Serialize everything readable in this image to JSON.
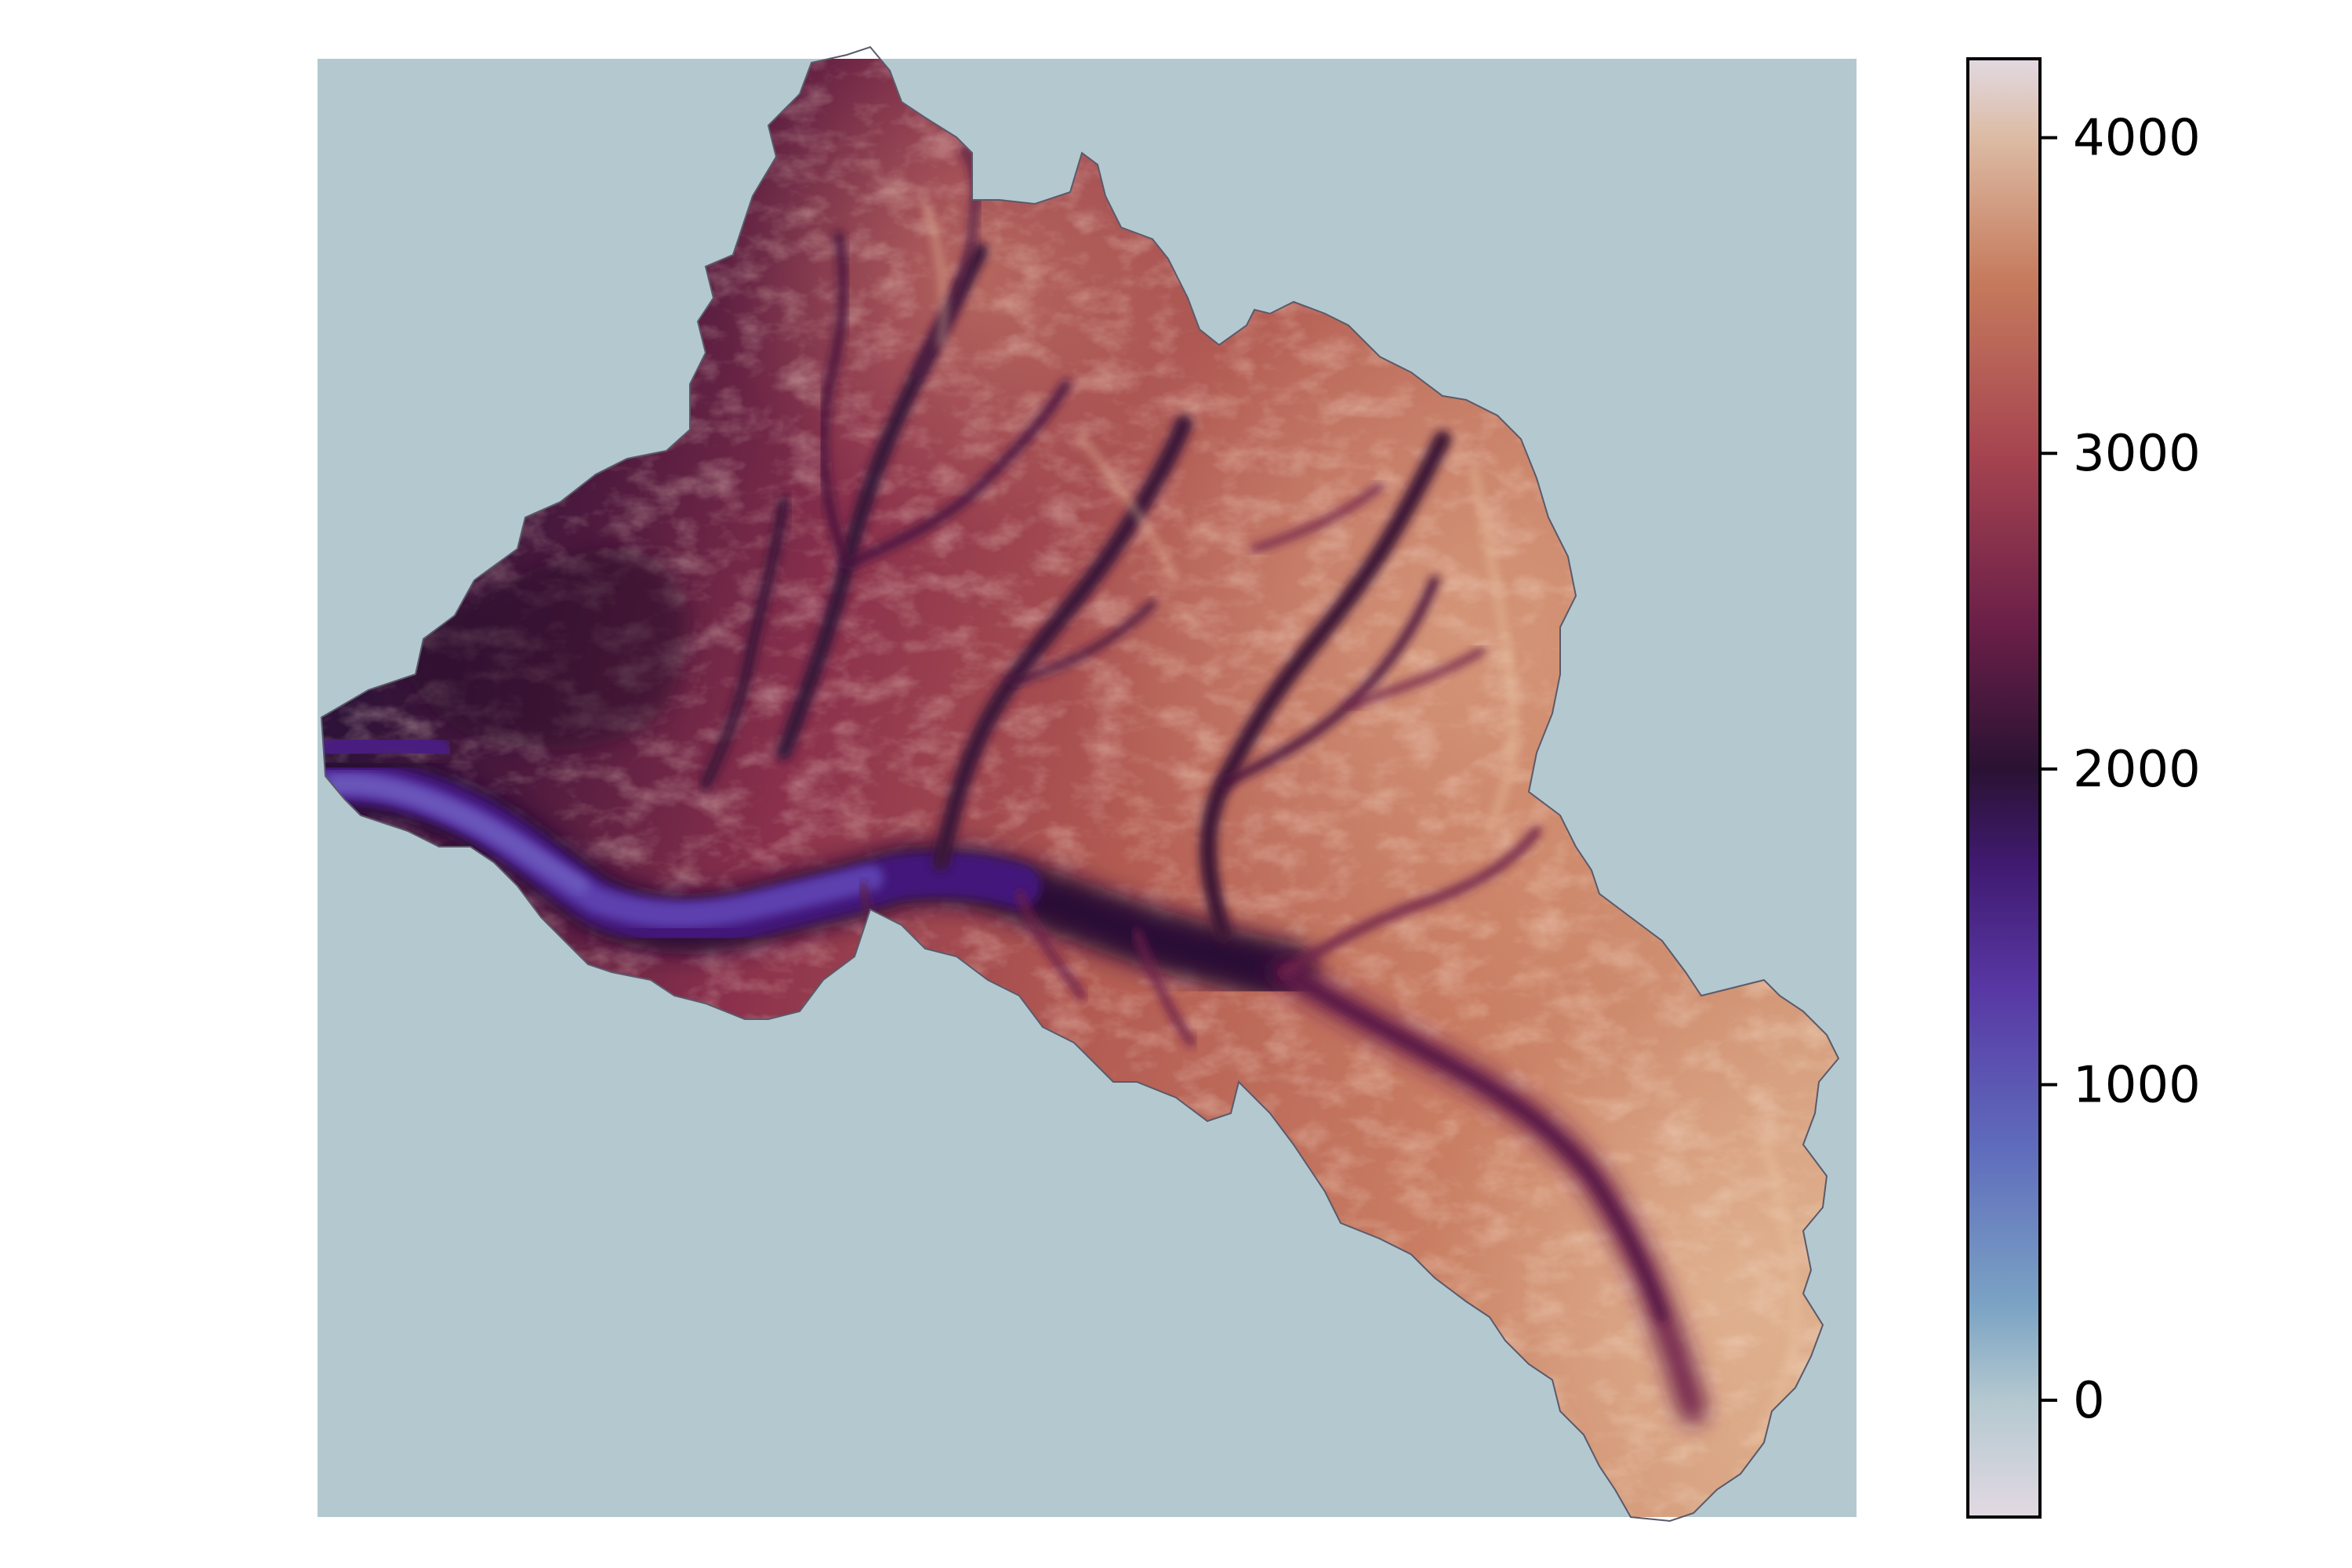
{
  "map": {
    "background_color": "#b4c8d0",
    "region_stroke": "#5a5a6a",
    "colormap": "twilight-style elevation"
  },
  "colorbar": {
    "range": [
      -370,
      4250
    ],
    "ticks": [
      {
        "value": 4000,
        "label": "4000"
      },
      {
        "value": 3000,
        "label": "3000"
      },
      {
        "value": 2000,
        "label": "2000"
      },
      {
        "value": 1000,
        "label": "1000"
      },
      {
        "value": 0,
        "label": "0"
      }
    ],
    "stops": [
      {
        "value": -370,
        "color": "#e2d9e2"
      },
      {
        "value": 0,
        "color": "#b4c8d0"
      },
      {
        "value": 300,
        "color": "#7ba3c4"
      },
      {
        "value": 800,
        "color": "#5f6cbc"
      },
      {
        "value": 1300,
        "color": "#5838a4"
      },
      {
        "value": 1700,
        "color": "#401a70"
      },
      {
        "value": 2000,
        "color": "#2a1233"
      },
      {
        "value": 2450,
        "color": "#6a1f48"
      },
      {
        "value": 3000,
        "color": "#a64450"
      },
      {
        "value": 3550,
        "color": "#c67b5d"
      },
      {
        "value": 4000,
        "color": "#dcbba4"
      },
      {
        "value": 4250,
        "color": "#e2d9e2"
      }
    ]
  }
}
